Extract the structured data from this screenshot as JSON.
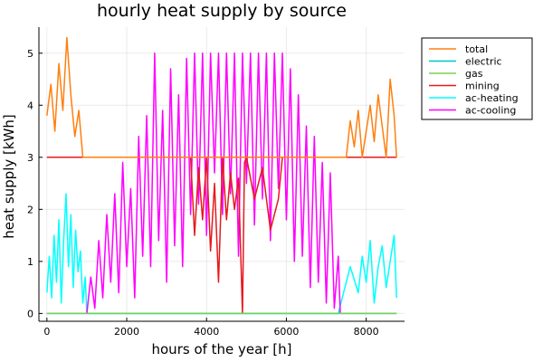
{
  "chart_data": {
    "type": "line",
    "title": "hourly heat supply by source",
    "xlabel": "hours of the year [h]",
    "ylabel": "heat supply [kWh]",
    "xlim": [
      -200,
      8960
    ],
    "ylim": [
      -0.15,
      5.5
    ],
    "xticks": [
      0,
      2000,
      4000,
      6000,
      8000
    ],
    "xtick_labels": [
      "0",
      "2000",
      "4000",
      "6000",
      "8000"
    ],
    "yticks": [
      0,
      1,
      2,
      3,
      4,
      5
    ],
    "ytick_labels": [
      "0",
      "1",
      "2",
      "3",
      "4",
      "5"
    ],
    "grid": true,
    "legend_position": "top-right outside",
    "series": [
      {
        "name": "total",
        "color": "#ff7f0e",
        "note": "spiky 3-5.3 in winter, flat 3 otherwise",
        "values": [
          [
            0,
            3.8
          ],
          [
            100,
            4.4
          ],
          [
            200,
            3.5
          ],
          [
            300,
            4.8
          ],
          [
            400,
            3.9
          ],
          [
            500,
            5.3
          ],
          [
            600,
            4.2
          ],
          [
            700,
            3.4
          ],
          [
            800,
            3.9
          ],
          [
            900,
            3.0
          ],
          [
            1000,
            3.0
          ],
          [
            2000,
            3.0
          ],
          [
            3000,
            3.0
          ],
          [
            4000,
            3.0
          ],
          [
            5000,
            3.0
          ],
          [
            6000,
            3.0
          ],
          [
            7000,
            3.0
          ],
          [
            7500,
            3.0
          ],
          [
            7600,
            3.7
          ],
          [
            7700,
            3.2
          ],
          [
            7800,
            3.9
          ],
          [
            7900,
            3.0
          ],
          [
            8000,
            3.5
          ],
          [
            8100,
            4.0
          ],
          [
            8200,
            3.3
          ],
          [
            8300,
            4.2
          ],
          [
            8400,
            3.6
          ],
          [
            8500,
            3.0
          ],
          [
            8600,
            4.5
          ],
          [
            8700,
            3.8
          ],
          [
            8760,
            3.0
          ]
        ]
      },
      {
        "name": "electric",
        "color": "#00c5c5",
        "values": [
          [
            0,
            0
          ],
          [
            8760,
            0
          ]
        ]
      },
      {
        "name": "gas",
        "color": "#7ad151",
        "values": [
          [
            0,
            0
          ],
          [
            8760,
            0
          ]
        ]
      },
      {
        "name": "mining",
        "color": "#e41a1c",
        "values": [
          [
            0,
            3.0
          ],
          [
            3600,
            3.0
          ],
          [
            3700,
            1.5
          ],
          [
            3800,
            2.8
          ],
          [
            3900,
            1.8
          ],
          [
            4000,
            3.0
          ],
          [
            4100,
            1.2
          ],
          [
            4200,
            2.5
          ],
          [
            4300,
            0.6
          ],
          [
            4400,
            3.0
          ],
          [
            4500,
            1.8
          ],
          [
            4600,
            2.7
          ],
          [
            4700,
            2.0
          ],
          [
            4800,
            2.6
          ],
          [
            4900,
            0.0
          ],
          [
            4950,
            2.9
          ],
          [
            5000,
            3.0
          ],
          [
            5200,
            2.2
          ],
          [
            5400,
            2.8
          ],
          [
            5600,
            1.6
          ],
          [
            5800,
            2.2
          ],
          [
            5900,
            3.0
          ],
          [
            8760,
            3.0
          ]
        ]
      },
      {
        "name": "ac-heating",
        "color": "#00ffff",
        "values": [
          [
            0,
            0.4
          ],
          [
            60,
            1.1
          ],
          [
            120,
            0.3
          ],
          [
            180,
            1.5
          ],
          [
            240,
            0.6
          ],
          [
            300,
            1.8
          ],
          [
            360,
            0.2
          ],
          [
            420,
            1.4
          ],
          [
            480,
            2.3
          ],
          [
            540,
            0.9
          ],
          [
            600,
            1.9
          ],
          [
            660,
            0.5
          ],
          [
            720,
            1.6
          ],
          [
            780,
            0.8
          ],
          [
            840,
            1.2
          ],
          [
            900,
            0.2
          ],
          [
            960,
            0.7
          ],
          [
            1000,
            0.0
          ],
          [
            1200,
            0.0
          ],
          [
            7300,
            0.0
          ],
          [
            7400,
            0.3
          ],
          [
            7600,
            0.9
          ],
          [
            7800,
            0.4
          ],
          [
            7900,
            1.1
          ],
          [
            8000,
            0.6
          ],
          [
            8100,
            1.4
          ],
          [
            8200,
            0.2
          ],
          [
            8300,
            0.9
          ],
          [
            8400,
            1.3
          ],
          [
            8500,
            0.5
          ],
          [
            8600,
            1.0
          ],
          [
            8700,
            1.5
          ],
          [
            8760,
            0.3
          ]
        ]
      },
      {
        "name": "ac-cooling",
        "color": "#ff00ff",
        "values": [
          [
            1000,
            0.0
          ],
          [
            1100,
            0.7
          ],
          [
            1200,
            0.1
          ],
          [
            1300,
            1.4
          ],
          [
            1400,
            0.3
          ],
          [
            1500,
            1.9
          ],
          [
            1600,
            0.6
          ],
          [
            1700,
            2.3
          ],
          [
            1800,
            0.4
          ],
          [
            1900,
            2.9
          ],
          [
            2000,
            0.9
          ],
          [
            2100,
            2.4
          ],
          [
            2200,
            0.3
          ],
          [
            2300,
            3.4
          ],
          [
            2400,
            1.1
          ],
          [
            2500,
            3.8
          ],
          [
            2600,
            0.9
          ],
          [
            2700,
            5.0
          ],
          [
            2800,
            1.4
          ],
          [
            2900,
            3.9
          ],
          [
            3000,
            0.6
          ],
          [
            3100,
            4.7
          ],
          [
            3200,
            1.3
          ],
          [
            3300,
            4.2
          ],
          [
            3400,
            0.9
          ],
          [
            3500,
            4.9
          ],
          [
            3600,
            1.9
          ],
          [
            3700,
            5.0
          ],
          [
            3800,
            2.1
          ],
          [
            3900,
            5.0
          ],
          [
            4000,
            1.5
          ],
          [
            4100,
            5.0
          ],
          [
            4200,
            2.7
          ],
          [
            4300,
            5.0
          ],
          [
            4400,
            1.9
          ],
          [
            4500,
            5.0
          ],
          [
            4600,
            2.3
          ],
          [
            4700,
            5.0
          ],
          [
            4800,
            1.1
          ],
          [
            4900,
            5.0
          ],
          [
            5000,
            2.5
          ],
          [
            5100,
            5.0
          ],
          [
            5200,
            1.7
          ],
          [
            5300,
            5.0
          ],
          [
            5400,
            2.2
          ],
          [
            5500,
            5.0
          ],
          [
            5600,
            1.4
          ],
          [
            5700,
            5.0
          ],
          [
            5800,
            2.4
          ],
          [
            5900,
            5.0
          ],
          [
            6000,
            1.8
          ],
          [
            6100,
            4.7
          ],
          [
            6200,
            1.0
          ],
          [
            6300,
            4.2
          ],
          [
            6400,
            1.1
          ],
          [
            6500,
            3.6
          ],
          [
            6600,
            0.5
          ],
          [
            6700,
            3.4
          ],
          [
            6800,
            0.6
          ],
          [
            6900,
            2.9
          ],
          [
            7000,
            0.2
          ],
          [
            7100,
            2.7
          ],
          [
            7200,
            0.1
          ],
          [
            7300,
            1.1
          ],
          [
            7350,
            0.0
          ]
        ]
      }
    ]
  }
}
